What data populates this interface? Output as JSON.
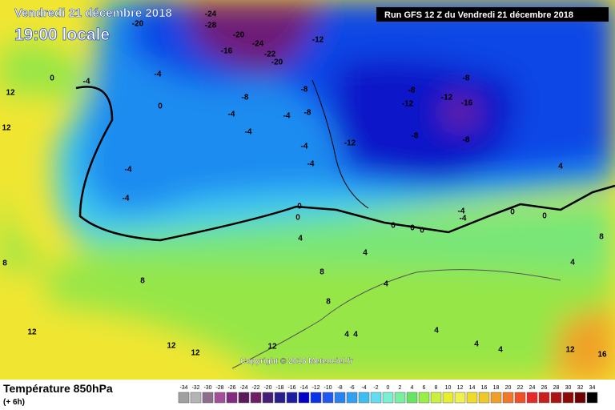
{
  "header": {
    "date": "Vendredi 21 décembre 2018",
    "time": "19:00 locale",
    "run": "Run GFS 12 Z du Vendredi 21 décembre 2018"
  },
  "copyright": "Copyright © 2018 Meteociel.fr",
  "footer": {
    "title": "Température 850hPa",
    "subtitle": "(+ 6h)"
  },
  "map_labels": [
    "-24",
    "-28",
    "-20",
    "-20",
    "-24",
    "-16",
    "-22",
    "-20",
    "-12",
    "-4",
    "-4",
    "0",
    "0",
    "-8",
    "-8",
    "-4",
    "-8",
    "-4",
    "-4",
    "-8",
    "-12",
    "-8",
    "-12",
    "-16",
    "-8",
    "-8",
    "-12",
    "-4",
    "-4",
    "-4",
    "-4",
    "0",
    "0",
    "0",
    "0",
    "0",
    "-4",
    "-4",
    "0",
    "0",
    "4",
    "4",
    "4",
    "8",
    "8",
    "8",
    "8",
    "12",
    "12",
    "12",
    "12",
    "4",
    "4",
    "4",
    "4",
    "4",
    "12",
    "12",
    "8",
    "12",
    "16",
    "4",
    "4"
  ],
  "legend": {
    "labels": [
      -34,
      -32,
      -30,
      -28,
      -26,
      -24,
      -22,
      -20,
      -18,
      -16,
      -14,
      -12,
      -10,
      -8,
      -6,
      -4,
      -2,
      0,
      2,
      4,
      6,
      8,
      10,
      12,
      14,
      16,
      18,
      20,
      22,
      24,
      26,
      28,
      30,
      32,
      34
    ],
    "colors": [
      "#a0a0a0",
      "#b4b4b4",
      "#8c6e8c",
      "#a0509a",
      "#822a82",
      "#5a1a5a",
      "#6e1e64",
      "#461e78",
      "#2a1e8c",
      "#1e1ea0",
      "#0000c8",
      "#0a32e6",
      "#1e5af0",
      "#2882f0",
      "#32a0f0",
      "#3cbef0",
      "#64dcf0",
      "#78f0d2",
      "#78f0a0",
      "#64e664",
      "#96f046",
      "#c8f03c",
      "#e6f028",
      "#f0f050",
      "#f0dc28",
      "#f0c828",
      "#f0a028",
      "#f07828",
      "#f05028",
      "#e62828",
      "#c81e1e",
      "#aa1414",
      "#8c0a0a",
      "#6e0000",
      "#000000"
    ]
  }
}
